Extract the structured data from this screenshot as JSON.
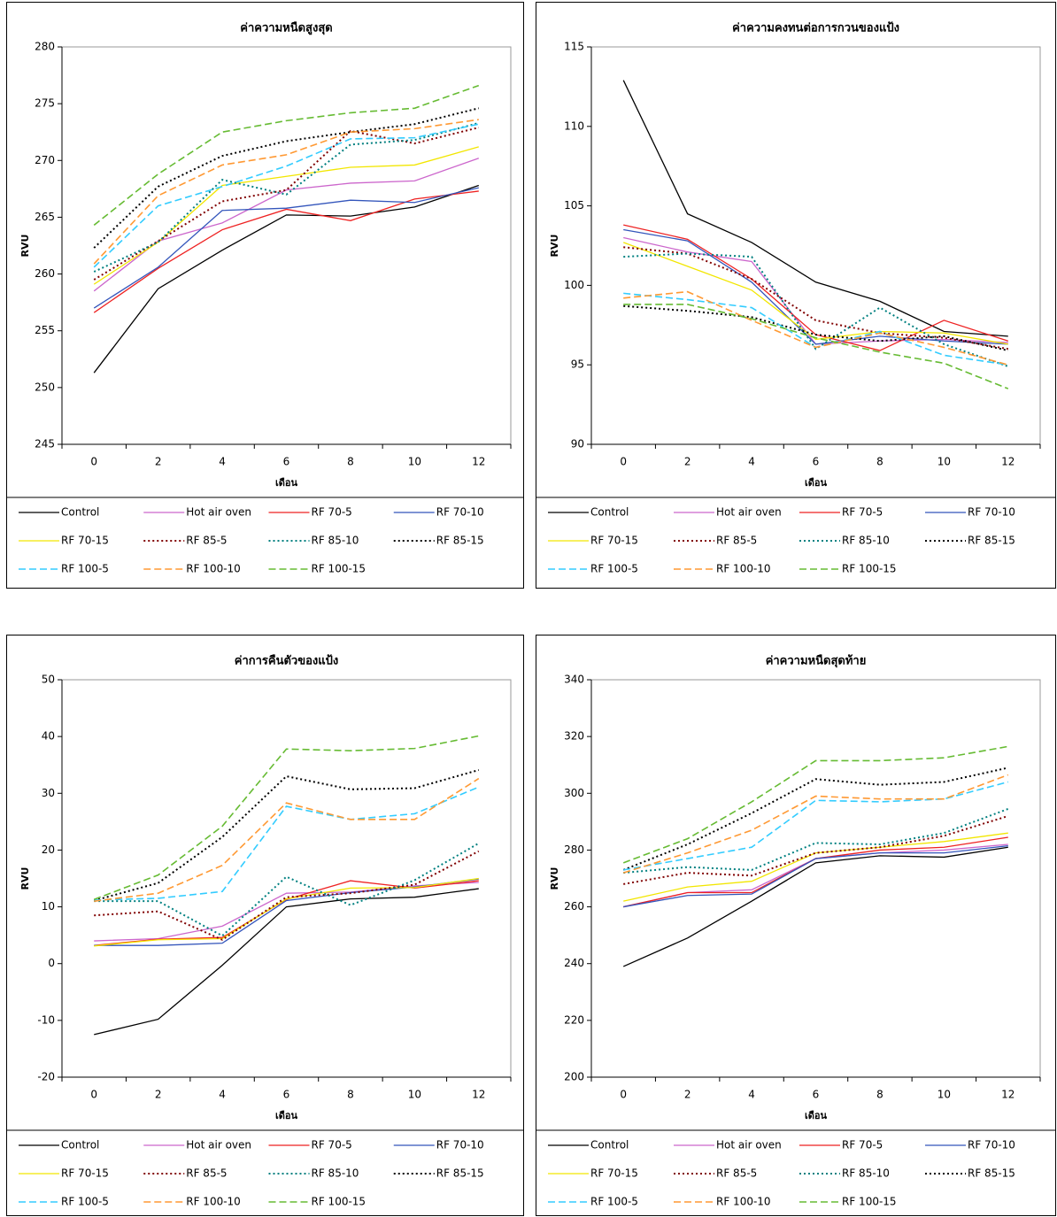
{
  "chart_data": [
    {
      "type": "line",
      "title": "ค่าความหนืดสูงสุด",
      "x_label": "เดือน",
      "y_label": "RVU",
      "categories": [
        "0",
        "2",
        "4",
        "6",
        "8",
        "10",
        "12"
      ],
      "ylim": [
        245,
        280
      ],
      "yticks": [
        245,
        250,
        255,
        260,
        265,
        270,
        275,
        280
      ],
      "series": [
        {
          "name": "Control",
          "color": "#000000",
          "style": "solid",
          "values": [
            251.3,
            258.7,
            262.1,
            265.2,
            265.1,
            265.9,
            267.8
          ]
        },
        {
          "name": "Hot air oven",
          "color": "#cc66cc",
          "style": "solid",
          "values": [
            258.5,
            262.9,
            264.5,
            267.4,
            268.0,
            268.2,
            270.2
          ]
        },
        {
          "name": "RF 70-5",
          "color": "#ee2222",
          "style": "solid",
          "values": [
            256.6,
            260.5,
            263.9,
            265.7,
            264.7,
            266.6,
            267.3
          ]
        },
        {
          "name": "RF 70-10",
          "color": "#3355bb",
          "style": "solid",
          "values": [
            257.0,
            260.6,
            265.6,
            265.8,
            266.5,
            266.3,
            267.6
          ]
        },
        {
          "name": "RF 70-15",
          "color": "#f2e600",
          "style": "solid",
          "values": [
            259.1,
            262.8,
            267.8,
            268.6,
            269.4,
            269.6,
            271.2
          ]
        },
        {
          "name": "RF 85-5",
          "color": "#800000",
          "style": "dotted",
          "values": [
            259.5,
            262.9,
            266.4,
            267.4,
            272.6,
            271.5,
            272.9
          ]
        },
        {
          "name": "RF 85-10",
          "color": "#008080",
          "style": "dotted",
          "values": [
            260.2,
            262.8,
            268.3,
            267.0,
            271.4,
            271.8,
            273.3
          ]
        },
        {
          "name": "RF 85-15",
          "color": "#000000",
          "style": "dotted",
          "values": [
            262.3,
            267.7,
            270.4,
            271.7,
            272.5,
            273.2,
            274.6
          ]
        },
        {
          "name": "RF 100-5",
          "color": "#33ccff",
          "style": "dashed",
          "values": [
            260.6,
            266.0,
            267.7,
            269.5,
            271.9,
            272.0,
            273.2
          ]
        },
        {
          "name": "RF 100-10",
          "color": "#ff9933",
          "style": "dashed",
          "values": [
            260.9,
            266.9,
            269.6,
            270.5,
            272.5,
            272.8,
            273.6
          ]
        },
        {
          "name": "RF 100-15",
          "color": "#66bb33",
          "style": "dashed",
          "values": [
            264.3,
            268.8,
            272.5,
            273.5,
            274.2,
            274.6,
            276.6
          ]
        }
      ]
    },
    {
      "type": "line",
      "title": "ค่าความคงทนต่อการกวนของแป้ง",
      "x_label": "เดือน",
      "y_label": "RVU",
      "categories": [
        "0",
        "2",
        "4",
        "6",
        "8",
        "10",
        "12"
      ],
      "ylim": [
        90,
        115
      ],
      "yticks": [
        90,
        95,
        100,
        105,
        110,
        115
      ],
      "series": [
        {
          "name": "Control",
          "color": "#000000",
          "style": "solid",
          "values": [
            112.9,
            104.5,
            102.7,
            100.2,
            99.0,
            97.1,
            96.8
          ]
        },
        {
          "name": "Hot air oven",
          "color": "#cc66cc",
          "style": "solid",
          "values": [
            103.0,
            102.1,
            101.5,
            96.3,
            96.5,
            96.6,
            96.4
          ]
        },
        {
          "name": "RF 70-5",
          "color": "#ee2222",
          "style": "solid",
          "values": [
            103.8,
            102.9,
            100.4,
            96.9,
            95.9,
            97.8,
            96.5
          ]
        },
        {
          "name": "RF 70-10",
          "color": "#3355bb",
          "style": "solid",
          "values": [
            103.5,
            102.8,
            100.2,
            96.3,
            96.8,
            96.5,
            96.3
          ]
        },
        {
          "name": "RF 70-15",
          "color": "#f2e600",
          "style": "solid",
          "values": [
            102.7,
            101.2,
            99.7,
            96.6,
            97.1,
            97.0,
            96.3
          ]
        },
        {
          "name": "RF 85-5",
          "color": "#800000",
          "style": "dotted",
          "values": [
            102.4,
            102.0,
            100.4,
            97.8,
            97.0,
            96.7,
            96.0
          ]
        },
        {
          "name": "RF 85-10",
          "color": "#008080",
          "style": "dotted",
          "values": [
            101.8,
            102.0,
            101.8,
            96.0,
            98.6,
            96.3,
            94.9
          ]
        },
        {
          "name": "RF 85-15",
          "color": "#000000",
          "style": "dotted",
          "values": [
            98.7,
            98.4,
            98.0,
            96.9,
            96.5,
            96.8,
            95.9
          ]
        },
        {
          "name": "RF 100-5",
          "color": "#33ccff",
          "style": "dashed",
          "values": [
            99.5,
            99.1,
            98.6,
            96.1,
            97.1,
            95.6,
            95.0
          ]
        },
        {
          "name": "RF 100-10",
          "color": "#ff9933",
          "style": "dashed",
          "values": [
            99.2,
            99.6,
            97.8,
            96.1,
            97.0,
            96.1,
            95.0
          ]
        },
        {
          "name": "RF 100-15",
          "color": "#66bb33",
          "style": "dashed",
          "values": [
            98.8,
            98.8,
            97.9,
            96.7,
            95.8,
            95.1,
            93.5
          ]
        }
      ]
    },
    {
      "type": "line",
      "title": "ค่าการคืนตัวของแป้ง",
      "x_label": "เดือน",
      "y_label": "RVU",
      "categories": [
        "0",
        "2",
        "4",
        "6",
        "8",
        "10",
        "12"
      ],
      "ylim": [
        -20,
        50
      ],
      "yticks": [
        -20,
        -10,
        0,
        10,
        20,
        30,
        40,
        50
      ],
      "series": [
        {
          "name": "Control",
          "color": "#000000",
          "style": "solid",
          "values": [
            -12.5,
            -9.8,
            -0.3,
            10.0,
            11.4,
            11.7,
            13.2
          ]
        },
        {
          "name": "Hot air oven",
          "color": "#cc66cc",
          "style": "solid",
          "values": [
            4.0,
            4.4,
            6.6,
            12.4,
            12.6,
            13.7,
            14.3
          ]
        },
        {
          "name": "RF 70-5",
          "color": "#ee2222",
          "style": "solid",
          "values": [
            3.2,
            4.3,
            4.6,
            11.3,
            14.6,
            13.3,
            14.6
          ]
        },
        {
          "name": "RF 70-10",
          "color": "#3355bb",
          "style": "solid",
          "values": [
            3.2,
            3.2,
            3.6,
            11.1,
            12.5,
            13.5,
            14.9
          ]
        },
        {
          "name": "RF 70-15",
          "color": "#f2e600",
          "style": "solid",
          "values": [
            3.1,
            4.2,
            4.4,
            11.4,
            13.3,
            13.4,
            15.0
          ]
        },
        {
          "name": "RF 85-5",
          "color": "#800000",
          "style": "dotted",
          "values": [
            8.5,
            9.2,
            4.2,
            11.7,
            12.4,
            13.9,
            19.8
          ]
        },
        {
          "name": "RF 85-10",
          "color": "#008080",
          "style": "dotted",
          "values": [
            11.0,
            11.0,
            4.9,
            15.3,
            10.3,
            14.7,
            21.2
          ]
        },
        {
          "name": "RF 85-15",
          "color": "#000000",
          "style": "dotted",
          "values": [
            11.1,
            14.2,
            22.3,
            33.0,
            30.7,
            30.9,
            34.1
          ]
        },
        {
          "name": "RF 100-5",
          "color": "#33ccff",
          "style": "dashed",
          "values": [
            11.2,
            11.5,
            12.7,
            27.7,
            25.4,
            26.4,
            31.1
          ]
        },
        {
          "name": "RF 100-10",
          "color": "#ff9933",
          "style": "dashed",
          "values": [
            11.0,
            12.4,
            17.3,
            28.3,
            25.4,
            25.4,
            32.6
          ]
        },
        {
          "name": "RF 100-15",
          "color": "#66bb33",
          "style": "dashed",
          "values": [
            11.3,
            15.6,
            24.2,
            37.8,
            37.5,
            37.9,
            40.1
          ]
        }
      ]
    },
    {
      "type": "line",
      "title": "ค่าความหนืดสุดท้าย",
      "x_label": "เดือน",
      "y_label": "RVU",
      "categories": [
        "0",
        "2",
        "4",
        "6",
        "8",
        "10",
        "12"
      ],
      "ylim": [
        200,
        340
      ],
      "yticks": [
        200,
        220,
        240,
        260,
        280,
        300,
        320,
        340
      ],
      "series": [
        {
          "name": "Control",
          "color": "#000000",
          "style": "solid",
          "values": [
            239,
            249,
            262,
            275.5,
            278,
            277.5,
            281
          ]
        },
        {
          "name": "Hot air oven",
          "color": "#cc66cc",
          "style": "solid",
          "values": [
            260,
            265,
            266,
            277,
            279,
            280,
            282
          ]
        },
        {
          "name": "RF 70-5",
          "color": "#ee2222",
          "style": "solid",
          "values": [
            260,
            265,
            265,
            277,
            280,
            281,
            284.5
          ]
        },
        {
          "name": "RF 70-10",
          "color": "#3355bb",
          "style": "solid",
          "values": [
            260,
            264,
            264.5,
            277,
            279,
            279,
            281.5
          ]
        },
        {
          "name": "RF 70-15",
          "color": "#f2e600",
          "style": "solid",
          "values": [
            262,
            267,
            269,
            279,
            281,
            283,
            286
          ]
        },
        {
          "name": "RF 85-5",
          "color": "#800000",
          "style": "dotted",
          "values": [
            268,
            272,
            271,
            279,
            281,
            285,
            292
          ]
        },
        {
          "name": "RF 85-10",
          "color": "#008080",
          "style": "dotted",
          "values": [
            272,
            274,
            273,
            282.5,
            282,
            286,
            294.5
          ]
        },
        {
          "name": "RF 85-15",
          "color": "#000000",
          "style": "dotted",
          "values": [
            273,
            282,
            293,
            305,
            303,
            304,
            309
          ]
        },
        {
          "name": "RF 100-5",
          "color": "#33ccff",
          "style": "dashed",
          "values": [
            273,
            277,
            281,
            297.5,
            297,
            298,
            304
          ]
        },
        {
          "name": "RF 100-10",
          "color": "#ff9933",
          "style": "dashed",
          "values": [
            272,
            279,
            287,
            299,
            298,
            298,
            306.5
          ]
        },
        {
          "name": "RF 100-15",
          "color": "#66bb33",
          "style": "dashed",
          "values": [
            275.5,
            284,
            297,
            311.5,
            311.5,
            312.5,
            316.5
          ]
        }
      ]
    }
  ]
}
